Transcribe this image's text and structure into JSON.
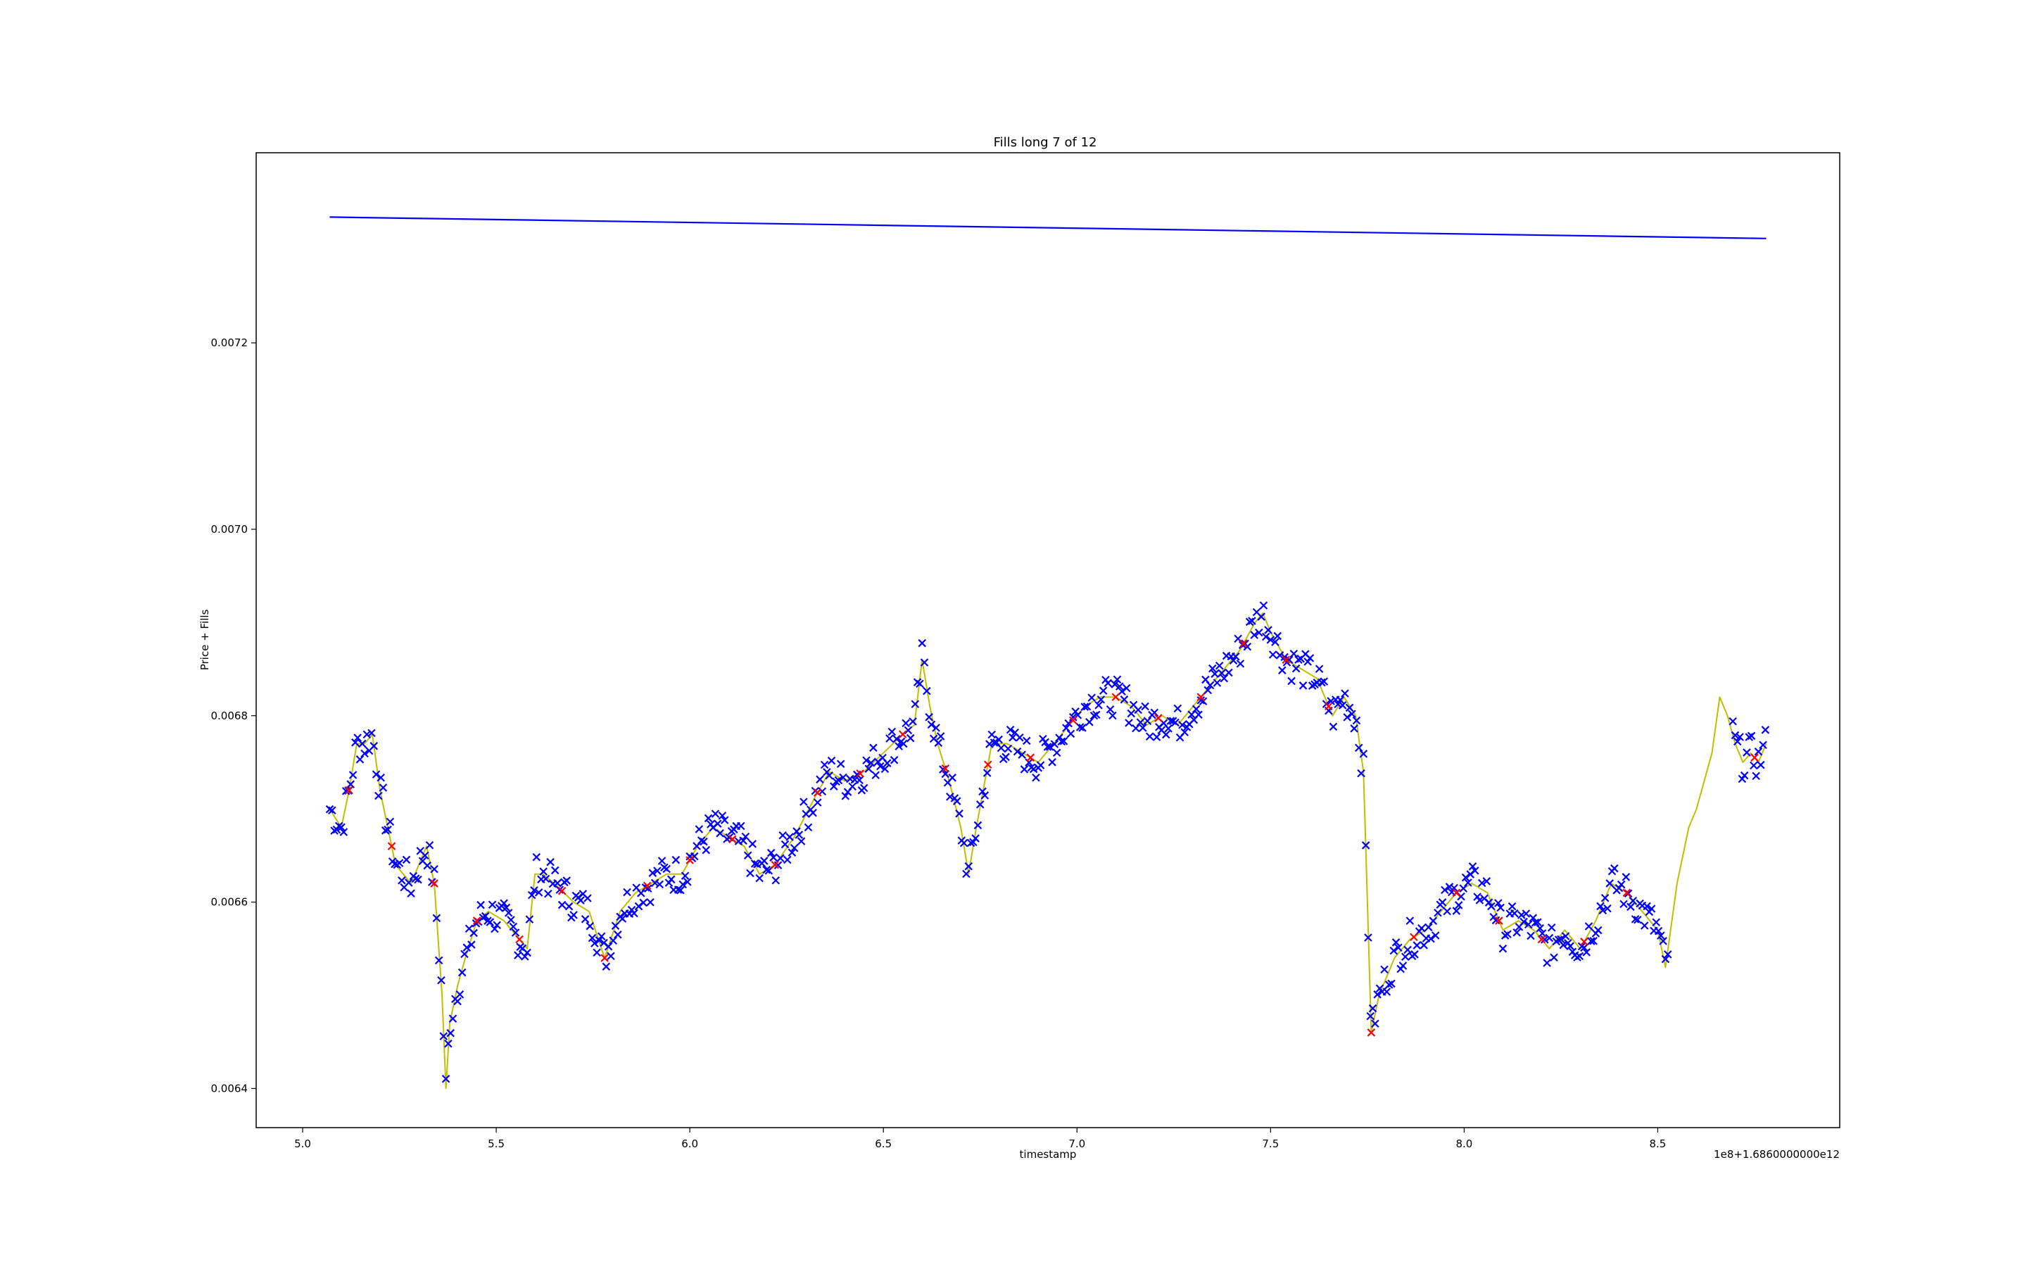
{
  "chart_data": {
    "type": "line",
    "title": "Fills long 7 of 12",
    "xlabel": "timestamp",
    "ylabel": "Price + Fills",
    "x_offset_label": "1e8+1.6860000000e12",
    "xlim": [
      4.88,
      8.97
    ],
    "ylim": [
      0.006358,
      0.007404
    ],
    "x_ticks": [
      5.0,
      5.5,
      6.0,
      6.5,
      7.0,
      7.5,
      8.0,
      8.5
    ],
    "x_tick_labels": [
      "5.0",
      "5.5",
      "6.0",
      "6.5",
      "7.0",
      "7.5",
      "8.0",
      "8.5"
    ],
    "y_ticks": [
      0.0064,
      0.0066,
      0.0068,
      0.007,
      0.0072
    ],
    "y_tick_labels": [
      "0.0064",
      "0.0066",
      "0.0068",
      "0.0070",
      "0.0072"
    ],
    "grid": false,
    "legend": "none",
    "colors": {
      "price": "#bfbf00",
      "upper_line": "#0000ff",
      "fills_buy": "#0000ff",
      "fills_sell": "#ff0000"
    },
    "series": [
      {
        "kind": "line",
        "color": "#bfbf00",
        "x": [
          5.07,
          5.1,
          5.12,
          5.14,
          5.16,
          5.18,
          5.2,
          5.22,
          5.24,
          5.26,
          5.28,
          5.3,
          5.32,
          5.34,
          5.36,
          5.37,
          5.38,
          5.4,
          5.42,
          5.45,
          5.48,
          5.52,
          5.56,
          5.58,
          5.6,
          5.62,
          5.65,
          5.7,
          5.74,
          5.78,
          5.82,
          5.86,
          5.9,
          5.94,
          5.98,
          6.02,
          6.06,
          6.1,
          6.14,
          6.18,
          6.22,
          6.27,
          6.32,
          6.36,
          6.4,
          6.45,
          6.5,
          6.55,
          6.58,
          6.6,
          6.62,
          6.64,
          6.67,
          6.7,
          6.72,
          6.74,
          6.78,
          6.82,
          6.86,
          6.9,
          6.94,
          6.98,
          7.02,
          7.06,
          7.1,
          7.14,
          7.18,
          7.22,
          7.26,
          7.3,
          7.34,
          7.38,
          7.42,
          7.46,
          7.48,
          7.5,
          7.54,
          7.58,
          7.62,
          7.66,
          7.69,
          7.72,
          7.74,
          7.75,
          7.76,
          7.78,
          7.82,
          7.86,
          7.9,
          7.94,
          7.98,
          8.02,
          8.06,
          8.1,
          8.14,
          8.18,
          8.22,
          8.26,
          8.3,
          8.34,
          8.38,
          8.42,
          8.46,
          8.5,
          8.52,
          8.55,
          8.58,
          8.6,
          8.62,
          8.64,
          8.66,
          8.68,
          8.7,
          8.72,
          8.74,
          8.76,
          8.78
        ],
        "y": [
          0.0067,
          0.00668,
          0.00672,
          0.00677,
          0.00677,
          0.00678,
          0.00672,
          0.00668,
          0.00664,
          0.00663,
          0.00662,
          0.00664,
          0.00666,
          0.00662,
          0.0065,
          0.0064,
          0.00647,
          0.00651,
          0.00654,
          0.00658,
          0.00659,
          0.00658,
          0.00656,
          0.00655,
          0.00663,
          0.00663,
          0.00662,
          0.0066,
          0.00659,
          0.00654,
          0.00659,
          0.00661,
          0.00662,
          0.00663,
          0.00663,
          0.00666,
          0.00668,
          0.00667,
          0.00666,
          0.00663,
          0.00664,
          0.00667,
          0.00671,
          0.00674,
          0.00673,
          0.00674,
          0.00676,
          0.00678,
          0.00679,
          0.00686,
          0.00681,
          0.00677,
          0.00673,
          0.00668,
          0.00663,
          0.00668,
          0.00677,
          0.00677,
          0.00676,
          0.00675,
          0.00677,
          0.00679,
          0.00681,
          0.00682,
          0.00682,
          0.00681,
          0.00679,
          0.0068,
          0.00679,
          0.00681,
          0.00683,
          0.00685,
          0.00687,
          0.0069,
          0.00691,
          0.00689,
          0.00686,
          0.00685,
          0.00684,
          0.0068,
          0.00682,
          0.0068,
          0.00674,
          0.0066,
          0.00646,
          0.0065,
          0.00654,
          0.00656,
          0.00657,
          0.00659,
          0.00661,
          0.00662,
          0.00661,
          0.00657,
          0.00658,
          0.00657,
          0.00655,
          0.00657,
          0.00655,
          0.00658,
          0.00662,
          0.00661,
          0.00659,
          0.00657,
          0.00653,
          0.00662,
          0.00668,
          0.0067,
          0.00673,
          0.00676,
          0.00682,
          0.0068,
          0.00677,
          0.00675,
          0.00676,
          0.00675,
          0.00677
        ]
      },
      {
        "kind": "line",
        "color": "#0000ff",
        "x": [
          5.07,
          8.78
        ],
        "y": [
          0.007335,
          0.007312
        ]
      }
    ]
  }
}
